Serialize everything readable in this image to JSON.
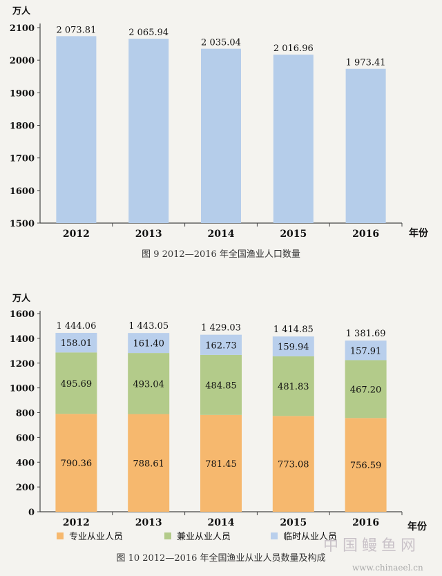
{
  "chart_data": [
    {
      "type": "bar",
      "ylabel": "万人",
      "xlabel": "年份",
      "title": "图 9   2012—2016 年全国渔业人口数量",
      "categories": [
        "2012",
        "2013",
        "2014",
        "2015",
        "2016"
      ],
      "values": [
        2073.81,
        2065.94,
        2035.04,
        2016.96,
        1973.41
      ],
      "value_labels": [
        "2 073.81",
        "2 065.94",
        "2 035.04",
        "2 016.96",
        "1 973.41"
      ],
      "ylim": [
        1500,
        2100
      ],
      "yticks": [
        "1500",
        "1600",
        "1700",
        "1800",
        "1900",
        "2000",
        "2100"
      ],
      "color": "#b5cdea"
    },
    {
      "type": "bar",
      "stacked": true,
      "ylabel": "万人",
      "xlabel": "年份",
      "title": "图 10   2012—2016 年全国渔业从业人员数量及构成",
      "categories": [
        "2012",
        "2013",
        "2014",
        "2015",
        "2016"
      ],
      "ylim": [
        0,
        1600
      ],
      "yticks": [
        "0",
        "200",
        "400",
        "600",
        "800",
        "1000",
        "1200",
        "1400",
        "1600"
      ],
      "totals": [
        1444.06,
        1443.05,
        1429.03,
        1414.85,
        1381.69
      ],
      "total_labels": [
        "1 444.06",
        "1 443.05",
        "1 429.03",
        "1 414.85",
        "1 381.69"
      ],
      "series": [
        {
          "name": "专业从业人员",
          "values": [
            790.36,
            788.61,
            781.45,
            773.08,
            756.59
          ],
          "labels": [
            "790.36",
            "788.61",
            "781.45",
            "773.08",
            "756.59"
          ],
          "color": "#f6b86e"
        },
        {
          "name": "兼业从业人员",
          "values": [
            495.69,
            493.04,
            484.85,
            481.83,
            467.2
          ],
          "labels": [
            "495.69",
            "493.04",
            "484.85",
            "481.83",
            "467.20"
          ],
          "color": "#b3cb8a"
        },
        {
          "name": "临时从业人员",
          "values": [
            158.01,
            161.4,
            162.73,
            159.94,
            157.91
          ],
          "labels": [
            "158.01",
            "161.40",
            "162.73",
            "159.94",
            "157.91"
          ],
          "color": "#b9cfec"
        }
      ],
      "legend_position": "bottom"
    }
  ],
  "watermark": {
    "brand": "中国鳗鱼网",
    "url": "www.chinaeel.cn"
  }
}
